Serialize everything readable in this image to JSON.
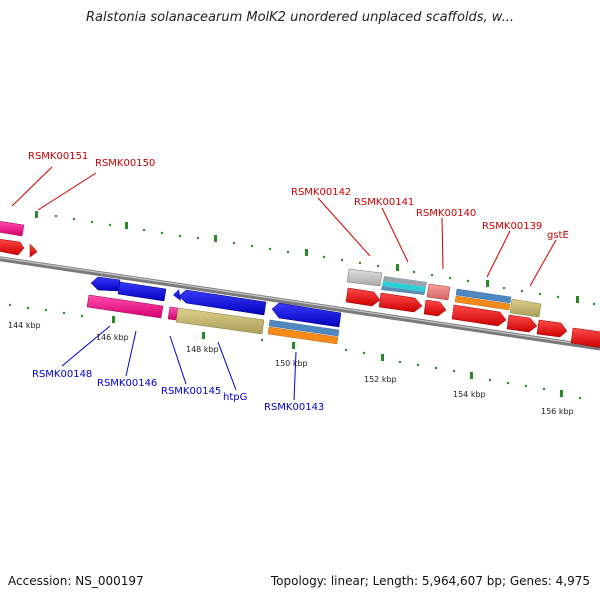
{
  "title": "Ralstonia solanacearum MolK2 unordered unplaced scaffolds, w...",
  "footer": {
    "accession": "Accession: NS_000197",
    "topology": "Topology: linear; Length: 5,964,607 bp; Genes: 4,975"
  },
  "scale_labels": [
    "144 kbp",
    "146 kbp",
    "148 kbp",
    "150 kbp",
    "152 kbp",
    "154 kbp",
    "156 kbp"
  ],
  "genes_top": [
    "RSMK00151",
    "RSMK00150",
    "RSMK00142",
    "RSMK00141",
    "RSMK00140",
    "RSMK00139",
    "gstE"
  ],
  "genes_bottom": [
    "RSMK00148",
    "RSMK00146",
    "RSMK00145",
    "htpG",
    "RSMK00143"
  ],
  "colors": {
    "top_label": "#cc0000",
    "bottom_label": "#0000cc",
    "tick": "#2a8a2a",
    "backbone": "#808080"
  }
}
